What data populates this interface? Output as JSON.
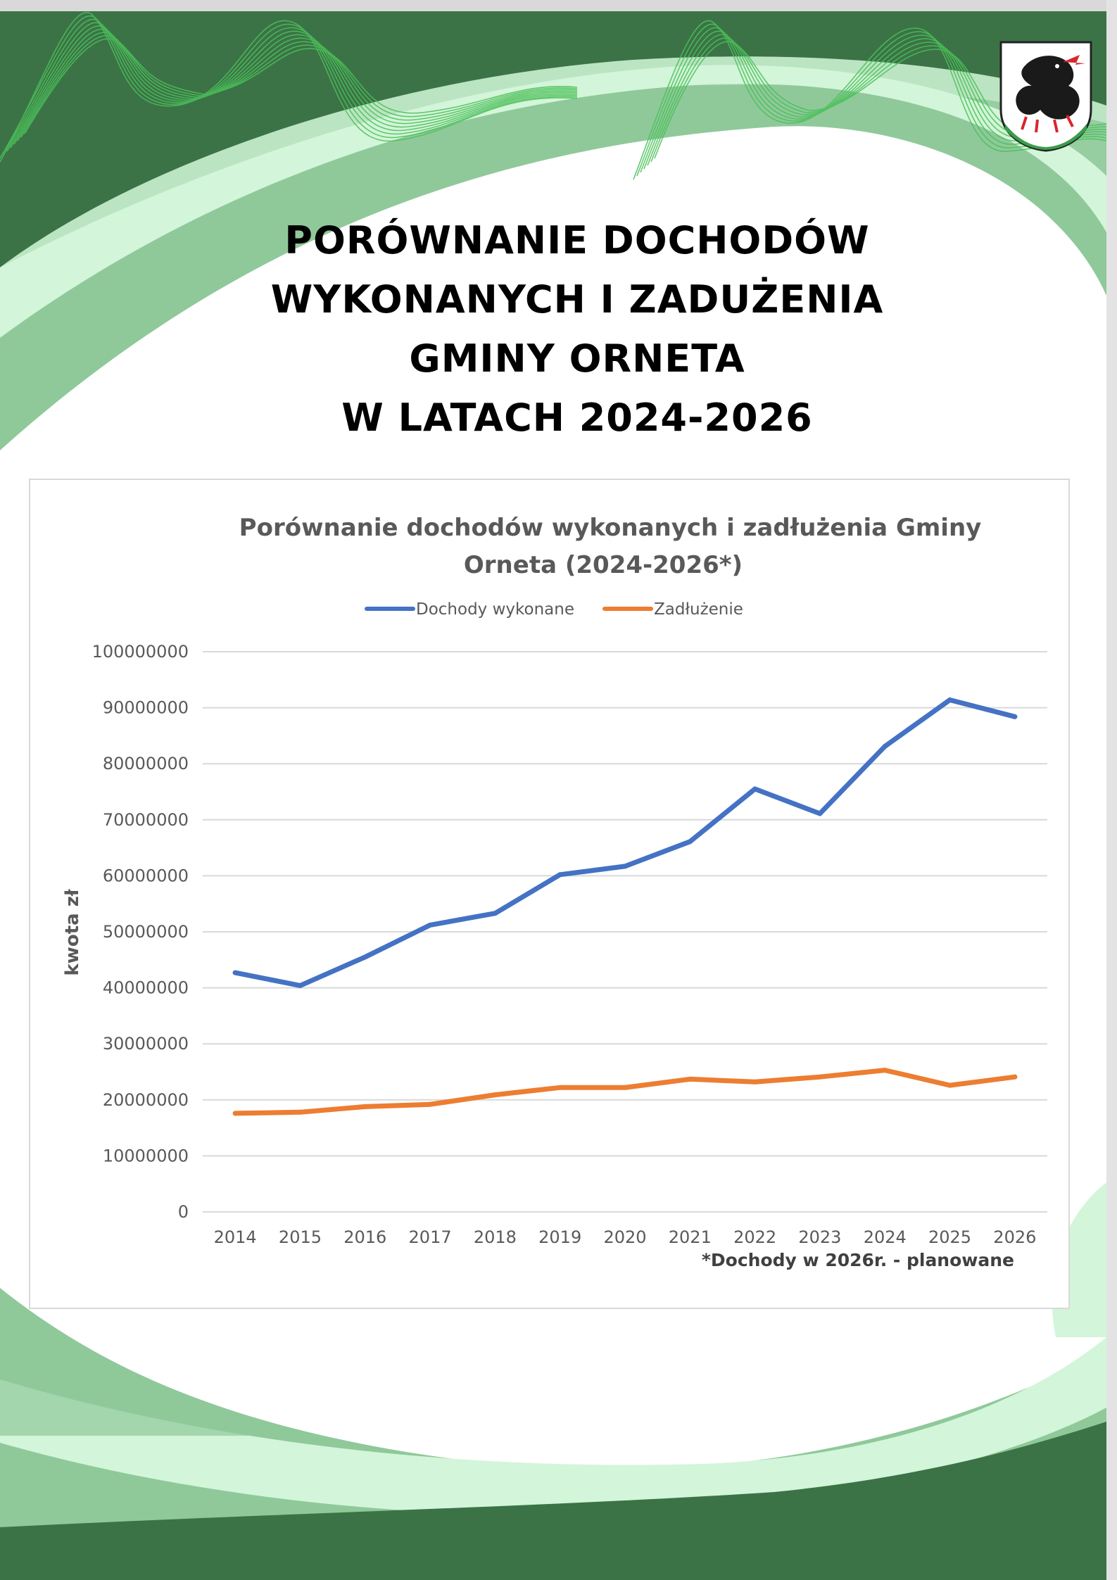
{
  "page": {
    "heading_lines": [
      "PORÓWNANIE DOCHODÓW",
      "WYKONANYCH I ZADUŻENIA",
      "GMINY ORNETA",
      "W LATACH 2024-2026"
    ],
    "colors": {
      "dark_green": "#3b7346",
      "mid_green": "#8fc99a",
      "light_green": "#d3f5d9",
      "wave_green": "#4cc05a"
    },
    "crest_icon": "dragon-crest-icon"
  },
  "chart_data": {
    "type": "line",
    "title_lines": [
      "Porównanie dochodów wykonanych i zadłużenia Gminy",
      "Orneta (2024-2026*)"
    ],
    "xlabel": "",
    "ylabel": "kwota zł",
    "footnote": "*Dochody w 2026r. - planowane",
    "legend_position": "top-center",
    "grid": true,
    "ylim": [
      0,
      100000000
    ],
    "yticks": [
      0,
      10000000,
      20000000,
      30000000,
      40000000,
      50000000,
      60000000,
      70000000,
      80000000,
      90000000,
      100000000
    ],
    "categories": [
      "2014",
      "2015",
      "2016",
      "2017",
      "2018",
      "2019",
      "2020",
      "2021",
      "2022",
      "2023",
      "2024",
      "2025",
      "2026"
    ],
    "series": [
      {
        "name": "Dochody wykonane",
        "color": "#4472c4",
        "values": [
          42700000,
          40400000,
          45500000,
          51200000,
          53300000,
          60200000,
          61700000,
          66100000,
          75500000,
          71100000,
          83100000,
          91400000,
          88400000
        ]
      },
      {
        "name": "Zadłużenie",
        "color": "#ed7d31",
        "values": [
          17600000,
          17800000,
          18800000,
          19200000,
          20900000,
          22200000,
          22200000,
          23700000,
          23200000,
          24100000,
          25300000,
          22600000,
          24100000
        ]
      }
    ]
  }
}
